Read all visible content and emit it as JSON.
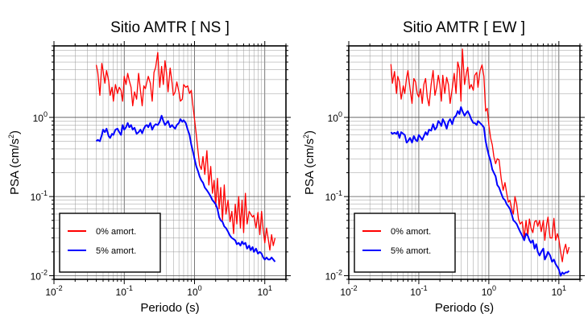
{
  "chart_data": [
    {
      "type": "line",
      "title": "Sitio AMTR [ NS ]",
      "xlabel": "Periodo (s)",
      "ylabel": {
        "main": "PSA (cm/s",
        "sup": "2",
        "close": ")"
      },
      "xscale": "log",
      "yscale": "log",
      "xlim": [
        0.01,
        20
      ],
      "ylim": [
        0.009,
        8
      ],
      "x_ticks": [
        {
          "value": 0.01,
          "base": "10",
          "exp": "-2"
        },
        {
          "value": 0.1,
          "base": "10",
          "exp": "-1"
        },
        {
          "value": 1,
          "base": "10",
          "exp": "0"
        },
        {
          "value": 10,
          "base": "10",
          "exp": "1"
        }
      ],
      "y_ticks": [
        {
          "value": 0.01,
          "base": "10",
          "exp": "-2"
        },
        {
          "value": 0.1,
          "base": "10",
          "exp": "-1"
        },
        {
          "value": 1,
          "base": "10",
          "exp": "0"
        }
      ],
      "grid": true,
      "legend_position": "bottom-left",
      "series": [
        {
          "name": "0% amort.",
          "color": "#ff0000",
          "x": [
            0.04,
            0.042,
            0.045,
            0.048,
            0.05,
            0.053,
            0.056,
            0.06,
            0.063,
            0.067,
            0.07,
            0.075,
            0.08,
            0.085,
            0.09,
            0.095,
            0.1,
            0.106,
            0.112,
            0.118,
            0.125,
            0.132,
            0.14,
            0.15,
            0.16,
            0.17,
            0.18,
            0.19,
            0.2,
            0.21,
            0.22,
            0.235,
            0.25,
            0.265,
            0.28,
            0.3,
            0.32,
            0.34,
            0.36,
            0.38,
            0.4,
            0.42,
            0.45,
            0.48,
            0.5,
            0.53,
            0.56,
            0.6,
            0.63,
            0.67,
            0.7,
            0.75,
            0.8,
            0.85,
            0.9,
            0.95,
            1.0,
            1.06,
            1.12,
            1.18,
            1.25,
            1.32,
            1.4,
            1.5,
            1.6,
            1.7,
            1.8,
            1.9,
            2.0,
            2.12,
            2.24,
            2.36,
            2.5,
            2.65,
            2.8,
            3.0,
            3.2,
            3.4,
            3.6,
            3.8,
            4.0,
            4.25,
            4.5,
            4.75,
            5.0,
            5.3,
            5.6,
            6.0,
            6.3,
            6.7,
            7.0,
            7.5,
            8.0,
            8.5,
            9.0,
            9.5,
            10.0,
            10.6,
            11.2,
            11.8,
            12.5,
            13.2,
            14.0
          ],
          "y": [
            4.6,
            3.7,
            1.9,
            4.8,
            3.9,
            2.7,
            3.9,
            2.9,
            1.9,
            2.4,
            1.6,
            2.6,
            2.0,
            2.4,
            2.2,
            1.6,
            3.3,
            2.6,
            3.6,
            2.9,
            2.4,
            1.4,
            2.1,
            1.7,
            3.6,
            2.2,
            1.4,
            2.5,
            2.3,
            2.8,
            3.3,
            2.7,
            1.6,
            3.7,
            4.3,
            6.6,
            2.4,
            4.4,
            2.6,
            5.2,
            3.6,
            2.1,
            4.2,
            2.7,
            1.9,
            2.1,
            2.8,
            2.1,
            1.6,
            1.7,
            2.6,
            2.4,
            2.5,
            2.0,
            2.2,
            1.4,
            0.95,
            0.6,
            0.38,
            0.25,
            0.22,
            0.32,
            0.19,
            0.38,
            0.14,
            0.24,
            0.11,
            0.16,
            0.075,
            0.17,
            0.07,
            0.13,
            0.05,
            0.14,
            0.06,
            0.09,
            0.048,
            0.065,
            0.034,
            0.08,
            0.045,
            0.1,
            0.04,
            0.09,
            0.035,
            0.11,
            0.045,
            0.065,
            0.06,
            0.055,
            0.058,
            0.04,
            0.063,
            0.033,
            0.065,
            0.038,
            0.026,
            0.04,
            0.029,
            0.021,
            0.033,
            0.024,
            0.03
          ]
        },
        {
          "name": "5% amort.",
          "color": "#0000ff",
          "x": [
            0.04,
            0.042,
            0.045,
            0.048,
            0.05,
            0.053,
            0.056,
            0.06,
            0.063,
            0.067,
            0.07,
            0.075,
            0.08,
            0.085,
            0.09,
            0.095,
            0.1,
            0.106,
            0.112,
            0.118,
            0.125,
            0.132,
            0.14,
            0.15,
            0.16,
            0.17,
            0.18,
            0.19,
            0.2,
            0.21,
            0.22,
            0.235,
            0.25,
            0.265,
            0.28,
            0.3,
            0.32,
            0.34,
            0.36,
            0.38,
            0.4,
            0.42,
            0.45,
            0.48,
            0.5,
            0.53,
            0.56,
            0.6,
            0.63,
            0.67,
            0.7,
            0.75,
            0.8,
            0.85,
            0.9,
            0.95,
            1.0,
            1.06,
            1.12,
            1.18,
            1.25,
            1.32,
            1.4,
            1.5,
            1.6,
            1.7,
            1.8,
            1.9,
            2.0,
            2.12,
            2.24,
            2.36,
            2.5,
            2.65,
            2.8,
            3.0,
            3.2,
            3.4,
            3.6,
            3.8,
            4.0,
            4.25,
            4.5,
            4.75,
            5.0,
            5.3,
            5.6,
            6.0,
            6.3,
            6.7,
            7.0,
            7.5,
            8.0,
            8.5,
            9.0,
            9.5,
            10.0,
            10.6,
            11.2,
            11.8,
            12.5,
            13.2,
            14.0
          ],
          "y": [
            0.5,
            0.52,
            0.5,
            0.6,
            0.7,
            0.65,
            0.72,
            0.58,
            0.55,
            0.62,
            0.6,
            0.7,
            0.72,
            0.65,
            0.6,
            0.8,
            0.7,
            0.75,
            0.85,
            0.75,
            0.8,
            0.7,
            0.74,
            0.62,
            0.65,
            0.7,
            0.63,
            0.72,
            0.78,
            0.8,
            0.75,
            0.85,
            0.7,
            0.78,
            0.82,
            0.8,
            0.88,
            1.05,
            0.9,
            0.8,
            0.85,
            0.9,
            0.75,
            0.8,
            0.76,
            0.72,
            0.8,
            0.85,
            0.95,
            0.88,
            0.92,
            0.85,
            0.7,
            0.6,
            0.45,
            0.37,
            0.3,
            0.24,
            0.21,
            0.18,
            0.16,
            0.15,
            0.13,
            0.12,
            0.11,
            0.1,
            0.09,
            0.085,
            0.08,
            0.07,
            0.055,
            0.05,
            0.048,
            0.042,
            0.04,
            0.036,
            0.032,
            0.03,
            0.029,
            0.028,
            0.025,
            0.026,
            0.024,
            0.027,
            0.025,
            0.026,
            0.022,
            0.024,
            0.021,
            0.023,
            0.02,
            0.022,
            0.019,
            0.02,
            0.019,
            0.017,
            0.016,
            0.017,
            0.016,
            0.016,
            0.017,
            0.016,
            0.015
          ]
        }
      ]
    },
    {
      "type": "line",
      "title": "Sitio AMTR [ EW ]",
      "xlabel": "Periodo (s)",
      "ylabel": {
        "main": "PSA (cm/s",
        "sup": "2",
        "close": ")"
      },
      "xscale": "log",
      "yscale": "log",
      "xlim": [
        0.01,
        20
      ],
      "ylim": [
        0.009,
        8
      ],
      "x_ticks": [
        {
          "value": 0.01,
          "base": "10",
          "exp": "-2"
        },
        {
          "value": 0.1,
          "base": "10",
          "exp": "-1"
        },
        {
          "value": 1,
          "base": "10",
          "exp": "0"
        },
        {
          "value": 10,
          "base": "10",
          "exp": "1"
        }
      ],
      "y_ticks": [
        {
          "value": 0.01,
          "base": "10",
          "exp": "-2"
        },
        {
          "value": 0.1,
          "base": "10",
          "exp": "-1"
        },
        {
          "value": 1,
          "base": "10",
          "exp": "0"
        }
      ],
      "grid": true,
      "legend_position": "bottom-left",
      "series": [
        {
          "name": "0% amort.",
          "color": "#ff0000",
          "x": [
            0.04,
            0.042,
            0.045,
            0.048,
            0.05,
            0.053,
            0.056,
            0.06,
            0.063,
            0.067,
            0.07,
            0.075,
            0.08,
            0.085,
            0.09,
            0.095,
            0.1,
            0.106,
            0.112,
            0.118,
            0.125,
            0.132,
            0.14,
            0.15,
            0.16,
            0.17,
            0.18,
            0.19,
            0.2,
            0.21,
            0.22,
            0.235,
            0.25,
            0.265,
            0.28,
            0.3,
            0.32,
            0.34,
            0.36,
            0.38,
            0.4,
            0.42,
            0.45,
            0.48,
            0.5,
            0.53,
            0.56,
            0.6,
            0.63,
            0.67,
            0.7,
            0.75,
            0.8,
            0.85,
            0.9,
            0.95,
            1.0,
            1.06,
            1.12,
            1.18,
            1.25,
            1.32,
            1.4,
            1.5,
            1.6,
            1.7,
            1.8,
            1.9,
            2.0,
            2.12,
            2.24,
            2.36,
            2.5,
            2.65,
            2.8,
            3.0,
            3.2,
            3.4,
            3.6,
            3.8,
            4.0,
            4.25,
            4.5,
            4.75,
            5.0,
            5.3,
            5.6,
            6.0,
            6.3,
            6.7,
            7.0,
            7.5,
            8.0,
            8.5,
            9.0,
            9.5,
            10.0,
            10.6,
            11.2,
            11.8,
            12.5,
            13.2,
            14.0
          ],
          "y": [
            4.7,
            2.7,
            3.8,
            2.0,
            3.3,
            2.8,
            1.7,
            2.5,
            2.0,
            3.2,
            3.9,
            2.3,
            1.5,
            3.1,
            2.8,
            2.0,
            1.8,
            2.3,
            1.5,
            2.6,
            3.1,
            1.8,
            1.4,
            2.6,
            3.9,
            1.9,
            2.4,
            3.4,
            2.6,
            1.6,
            3.4,
            2.0,
            3.2,
            2.6,
            1.5,
            2.3,
            3.6,
            2.0,
            5.0,
            4.1,
            1.6,
            7.3,
            2.6,
            3.7,
            4.3,
            2.3,
            2.6,
            2.2,
            3.4,
            3.7,
            2.4,
            3.9,
            4.6,
            3.3,
            1.2,
            1.3,
            0.8,
            0.55,
            0.45,
            0.32,
            0.26,
            0.3,
            0.29,
            0.17,
            0.12,
            0.15,
            0.11,
            0.085,
            0.09,
            0.07,
            0.06,
            0.1,
            0.08,
            0.052,
            0.045,
            0.048,
            0.03,
            0.05,
            0.032,
            0.052,
            0.04,
            0.035,
            0.048,
            0.05,
            0.042,
            0.05,
            0.036,
            0.05,
            0.028,
            0.045,
            0.055,
            0.03,
            0.03,
            0.053,
            0.028,
            0.034,
            0.029,
            0.02,
            0.015,
            0.021,
            0.025,
            0.019,
            0.023
          ]
        },
        {
          "name": "5% amort.",
          "color": "#0000ff",
          "x": [
            0.04,
            0.042,
            0.045,
            0.048,
            0.05,
            0.053,
            0.056,
            0.06,
            0.063,
            0.067,
            0.07,
            0.075,
            0.08,
            0.085,
            0.09,
            0.095,
            0.1,
            0.106,
            0.112,
            0.118,
            0.125,
            0.132,
            0.14,
            0.15,
            0.16,
            0.17,
            0.18,
            0.19,
            0.2,
            0.21,
            0.22,
            0.235,
            0.25,
            0.265,
            0.28,
            0.3,
            0.32,
            0.34,
            0.36,
            0.38,
            0.4,
            0.42,
            0.45,
            0.48,
            0.5,
            0.53,
            0.56,
            0.6,
            0.63,
            0.67,
            0.7,
            0.75,
            0.8,
            0.85,
            0.9,
            0.95,
            1.0,
            1.06,
            1.12,
            1.18,
            1.25,
            1.32,
            1.4,
            1.5,
            1.6,
            1.7,
            1.8,
            1.9,
            2.0,
            2.12,
            2.24,
            2.36,
            2.5,
            2.65,
            2.8,
            3.0,
            3.2,
            3.4,
            3.6,
            3.8,
            4.0,
            4.25,
            4.5,
            4.75,
            5.0,
            5.3,
            5.6,
            6.0,
            6.3,
            6.7,
            7.0,
            7.5,
            8.0,
            8.5,
            9.0,
            9.5,
            10.0,
            10.6,
            11.2,
            11.8,
            12.5,
            13.2,
            14.0
          ],
          "y": [
            0.65,
            0.62,
            0.64,
            0.62,
            0.66,
            0.55,
            0.65,
            0.62,
            0.6,
            0.48,
            0.5,
            0.55,
            0.48,
            0.58,
            0.52,
            0.5,
            0.6,
            0.56,
            0.52,
            0.58,
            0.65,
            0.6,
            0.7,
            0.68,
            0.82,
            0.7,
            0.75,
            0.9,
            0.85,
            0.78,
            0.95,
            0.85,
            0.72,
            0.88,
            0.95,
            0.82,
            1.0,
            1.05,
            1.2,
            1.1,
            1.35,
            1.2,
            1.05,
            1.15,
            1.2,
            1.08,
            0.95,
            0.85,
            0.85,
            0.8,
            0.9,
            0.85,
            0.8,
            0.75,
            0.5,
            0.4,
            0.33,
            0.28,
            0.22,
            0.2,
            0.18,
            0.14,
            0.13,
            0.11,
            0.095,
            0.09,
            0.08,
            0.075,
            0.07,
            0.06,
            0.05,
            0.048,
            0.045,
            0.04,
            0.036,
            0.032,
            0.028,
            0.034,
            0.032,
            0.028,
            0.026,
            0.028,
            0.022,
            0.025,
            0.02,
            0.018,
            0.02,
            0.022,
            0.016,
            0.018,
            0.02,
            0.018,
            0.015,
            0.016,
            0.014,
            0.013,
            0.012,
            0.01,
            0.011,
            0.0105,
            0.011,
            0.011,
            0.0115
          ]
        }
      ]
    }
  ]
}
